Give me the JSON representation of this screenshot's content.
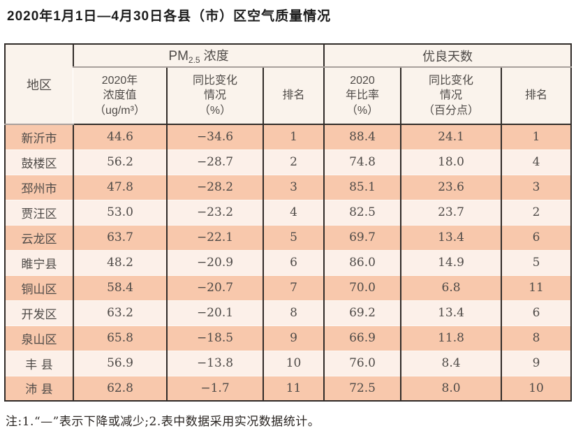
{
  "page": {
    "title": "2020年1月1日—4月30日各县（市）区空气质量情况",
    "note": "注:1.“—”表示下降或减少;2.表中数据采用实况数据统计。"
  },
  "colors": {
    "row_odd": "#f8c8ac",
    "row_even": "#fcf0e9",
    "header_bg": "#faf3ec",
    "border_dark": "#302b28",
    "border_gray": "#a8a09c",
    "text": "#4e4a47"
  },
  "table": {
    "header": {
      "region": "地区",
      "pm_group": {
        "prefix": "PM",
        "sub": "2.5",
        "suffix": "浓度"
      },
      "good_days_group": "优良天数",
      "sub_headers": {
        "pm_value": "2020年\n浓度值\n（ug/m³）",
        "pm_change": "同比变化\n情况\n（%）",
        "pm_rank": "排名",
        "gd_ratio": "2020\n年比率\n（%）",
        "gd_change": "同比变化\n情况\n（百分点）",
        "gd_rank": "排名"
      }
    },
    "rows": [
      [
        "新沂市",
        "44.6",
        "−34.6",
        "1",
        "88.4",
        "24.1",
        "1"
      ],
      [
        "鼓楼区",
        "56.2",
        "−28.7",
        "2",
        "74.8",
        "18.0",
        "4"
      ],
      [
        "邳州市",
        "47.8",
        "−28.2",
        "3",
        "85.1",
        "23.6",
        "3"
      ],
      [
        "贾汪区",
        "53.0",
        "−23.2",
        "4",
        "82.5",
        "23.7",
        "2"
      ],
      [
        "云龙区",
        "63.7",
        "−22.1",
        "5",
        "69.7",
        "13.4",
        "6"
      ],
      [
        "睢宁县",
        "48.2",
        "−20.9",
        "6",
        "86.0",
        "14.9",
        "5"
      ],
      [
        "铜山区",
        "58.4",
        "−20.7",
        "7",
        "70.0",
        "6.8",
        "11"
      ],
      [
        "开发区",
        "63.2",
        "−20.1",
        "8",
        "69.2",
        "13.4",
        "6"
      ],
      [
        "泉山区",
        "65.8",
        "−18.5",
        "9",
        "66.9",
        "11.8",
        "8"
      ],
      [
        "丰 县",
        "56.9",
        "−13.8",
        "10",
        "76.0",
        "8.4",
        "9"
      ],
      [
        "沛 县",
        "62.8",
        "−1.7",
        "11",
        "72.5",
        "8.0",
        "10"
      ]
    ]
  }
}
